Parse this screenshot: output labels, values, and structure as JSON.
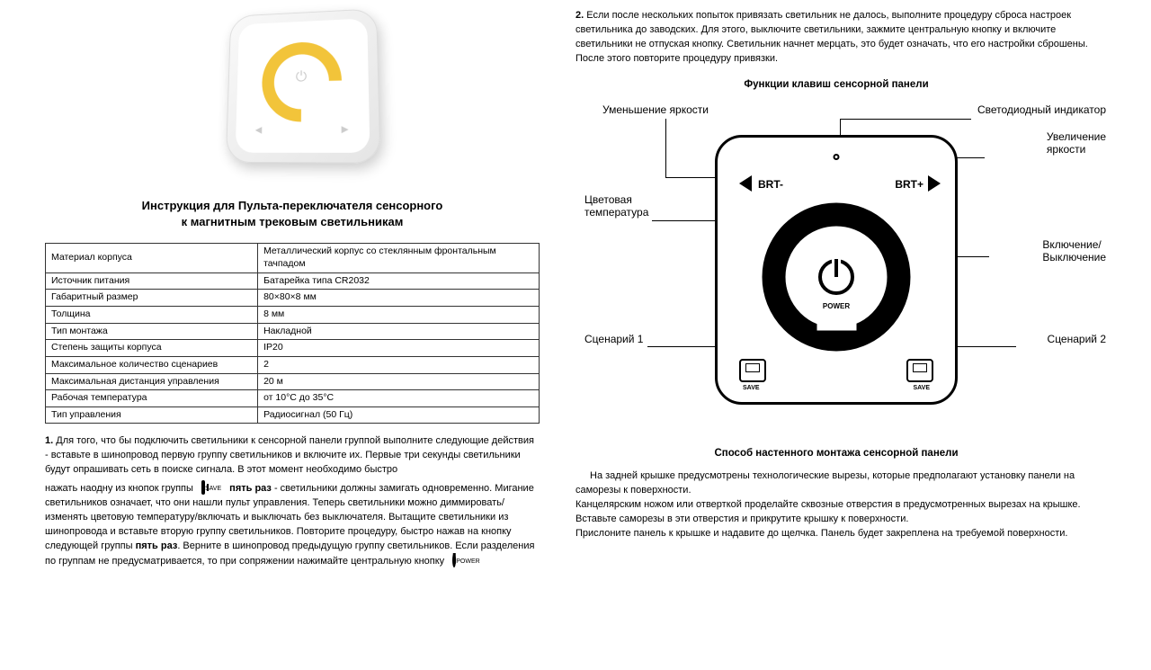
{
  "left": {
    "title_line1": "Инструкция для Пульта-переключателя сенсорного",
    "title_line2": "к магнитным трековым светильникам",
    "specs": [
      [
        "Материал корпуса",
        "Металлический корпус со стеклянным фронтальным тачпадом"
      ],
      [
        "Источник питания",
        "Батарейка типа CR2032"
      ],
      [
        "Габаритный размер",
        "80×80×8 мм"
      ],
      [
        "Толщина",
        "8 мм"
      ],
      [
        "Тип монтажа",
        "Накладной"
      ],
      [
        "Степень защиты корпуса",
        "IP20"
      ],
      [
        "Максимальное количество сценариев",
        "2"
      ],
      [
        "Максимальная дистанция управления",
        "20 м"
      ],
      [
        "Рабочая температура",
        "от 10°С до 35°С"
      ],
      [
        "Тип управления",
        "Радиосигнал (50 Гц)"
      ]
    ],
    "p1_num": "1.",
    "p1_a": "Для того, что бы подключить светильники к сенсорной панели группой выполните следующие действия - вставьте в шинопровод первую группу светильников и включите их. Первые три секунды светильники будут опрашивать сеть в поиске сигнала. В этот момент необходимо быстро",
    "p1_b": "нажать наодну из кнопок группы",
    "save_icon_label": "SAVE",
    "p1_bold": "пять раз",
    "p1_c": " - светильники должны замигать одновременно. Мигание светильников означает, что они нашли пульт  управления. Теперь светильники можно диммировать/изменять цветовую температуру/включать и выключать без выключателя. Вытащите светильники из шинопровода и вставьте вторую группу светильников. Повторите процедуру, быстро нажав  на кнопку следующей группы ",
    "p1_bold2": "пять раз",
    "p1_d": ". Верните в шинопровод предыдущую группу светильников. Если разделения по группам не предусматривается, то при сопряжении нажимайте центральную кнопку",
    "power_icon_label": "POWER"
  },
  "right": {
    "p2_num": "2.",
    "p2": "Если после нескольких попыток привязать светильник не далось, выполните процедуру сброса настроек светильника до заводских. Для этого, выключите светильники, зажмите центральную кнопку и включите светильники не отпуская кнопку. Светильник начнет мерцать, это будет означать, что его настройки сброшены. После этого повторите процедуру привязки.",
    "functions_title": "Функции клавиш сенсорной панели",
    "diagram": {
      "brt_minus": "BRT-",
      "brt_plus": "BRT+",
      "power_label": "POWER",
      "save_label": "SAVE",
      "callouts": {
        "brightness_down": "Уменьшение яркости",
        "led": "Светодиодный индикатор",
        "brightness_up_l1": "Увеличение",
        "brightness_up_l2": "яркости",
        "color_temp_l1": "Цветовая",
        "color_temp_l2": "температура",
        "power_l1": "Включение/",
        "power_l2": "Выключение",
        "scene1": "Сценарий 1",
        "scene2": "Сценарий 2"
      }
    },
    "mount_title": "Способ настенного монтажа сенсорной панели",
    "mount_p1": "На задней крышке предусмотрены технологические вырезы, которые предполагают установку панели на саморезы к поверхности.",
    "mount_p2": "Канцелярским ножом или отверткой проделайте сквозные отверстия в предусмотренных вырезах на крышке.",
    "mount_p3": "Вставьте саморезы в эти отверстия и прикрутите крышку к поверхности.",
    "mount_p4": "Прислоните панель к крышке и надавите до щелчка. Панель будет закреплена на требуемой поверхности."
  },
  "colors": {
    "accent_ring": "#f2c43a",
    "border": "#333333",
    "text": "#000000",
    "bg": "#ffffff"
  }
}
